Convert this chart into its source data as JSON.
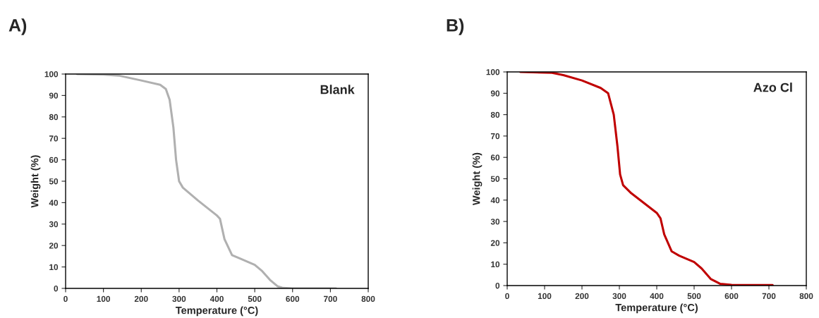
{
  "chart_data": [
    {
      "type": "line",
      "title": "A)",
      "xlabel": "Temperature (°C)",
      "ylabel": "Weight (%)",
      "annotations": [
        "Blank"
      ],
      "series": [
        {
          "color": "#b0b0b0",
          "x": [
            30,
            100,
            140,
            200,
            250,
            265,
            275,
            285,
            292,
            300,
            310,
            350,
            400,
            408,
            420,
            440,
            460,
            500,
            520,
            540,
            560,
            575,
            600,
            700,
            715
          ],
          "values": [
            100,
            99.8,
            99.3,
            97,
            95,
            93,
            88,
            75,
            60,
            50,
            47,
            41,
            34,
            32.5,
            23,
            15.5,
            14,
            11,
            8,
            4,
            1,
            0.2,
            0,
            0,
            0
          ]
        }
      ],
      "xlim": [
        0,
        800
      ],
      "xticks": [
        0,
        100,
        200,
        300,
        400,
        500,
        600,
        700,
        800
      ],
      "ylim": [
        0,
        100
      ],
      "yticks": [
        0,
        10,
        20,
        30,
        40,
        50,
        60,
        70,
        80,
        90,
        100
      ],
      "grid": false
    },
    {
      "type": "line",
      "title": "B)",
      "xlabel": "Temperature (°C)",
      "ylabel": "Weight (%)",
      "annotations": [
        "Azo Cl"
      ],
      "series": [
        {
          "color": "#c00000",
          "x": [
            35,
            120,
            150,
            200,
            250,
            270,
            285,
            295,
            302,
            310,
            330,
            400,
            410,
            420,
            440,
            460,
            500,
            520,
            545,
            570,
            600,
            710
          ],
          "values": [
            100,
            99.6,
            98.5,
            96,
            92.5,
            90,
            80,
            65,
            52,
            47,
            43.5,
            34,
            31.5,
            24,
            16,
            14,
            11,
            8,
            3,
            0.8,
            0.3,
            0.2
          ]
        }
      ],
      "xlim": [
        0,
        800
      ],
      "xticks": [
        0,
        100,
        200,
        300,
        400,
        500,
        600,
        700,
        800
      ],
      "ylim": [
        0,
        100
      ],
      "yticks": [
        0,
        10,
        20,
        30,
        40,
        50,
        60,
        70,
        80,
        90,
        100
      ],
      "grid": false
    }
  ]
}
